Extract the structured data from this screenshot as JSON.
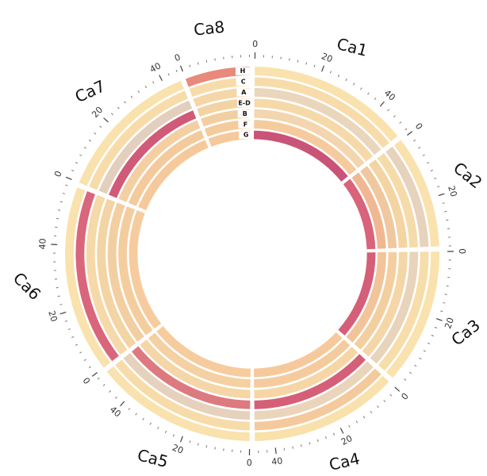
{
  "chart_data": {
    "type": "circos",
    "tracks": [
      "H",
      "C",
      "A",
      "E-D",
      "B",
      "F",
      "G"
    ],
    "chromosomes": [
      {
        "name": "Ca1",
        "length": 50,
        "ticks": [
          0,
          20,
          40
        ],
        "colors": [
          "#f9e2ad",
          "#f7dcaa",
          "#ead6bd",
          "#f6d9a8",
          "#f3d5b0",
          "#f5cb9e",
          "#c95478"
        ]
      },
      {
        "name": "Ca2",
        "length": 35,
        "ticks": [
          0,
          20
        ],
        "colors": [
          "#f9e2ad",
          "#e6d2bd",
          "#f6dbaa",
          "#f3d4a2",
          "#efc8a0",
          "#f0b892",
          "#d8637a"
        ]
      },
      {
        "name": "Ca3",
        "length": 42,
        "ticks": [
          0,
          20
        ],
        "colors": [
          "#f9e2ad",
          "#f7ddaa",
          "#e8d3bb",
          "#f5d6a6",
          "#f3cfa0",
          "#f2c49a",
          "#d55e79"
        ]
      },
      {
        "name": "Ca4",
        "length": 46,
        "ticks": [
          0,
          20,
          40
        ],
        "colors": [
          "#f9e1ab",
          "#f4c99c",
          "#ead5bb",
          "#d65f78",
          "#f6d6a5",
          "#f5cb9e",
          "#f6c99c"
        ]
      },
      {
        "name": "Ca5",
        "length": 50,
        "ticks": [
          0,
          20,
          40
        ],
        "colors": [
          "#f9e2ad",
          "#f7dcaa",
          "#e6d1bd",
          "#dc7a80",
          "#f5d6a6",
          "#f4d0a2",
          "#f6cc9e"
        ]
      },
      {
        "name": "Ca6",
        "length": 58,
        "ticks": [
          0,
          20,
          40
        ],
        "colors": [
          "#f9e2ad",
          "#d9667b",
          "#f6d9a8",
          "#f3d4a4",
          "#f2cfa2",
          "#f4cd9f",
          "#f6cc9e"
        ]
      },
      {
        "name": "Ca7",
        "length": 45,
        "ticks": [
          0,
          20,
          40
        ],
        "colors": [
          "#f9e2ad",
          "#f7dcaa",
          "#e3cfbd",
          "#d05a78",
          "#f3cfa2",
          "#f4ca9c",
          "#f6c99b"
        ]
      },
      {
        "name": "Ca8",
        "length": 20,
        "ticks": [
          0
        ],
        "colors": [
          "#e8897c",
          "#f7dcaa",
          "#f5d6a6",
          "#f3d3a4",
          "#f2cfa1",
          "#f4cb9c",
          "#f6c99b"
        ]
      }
    ]
  }
}
